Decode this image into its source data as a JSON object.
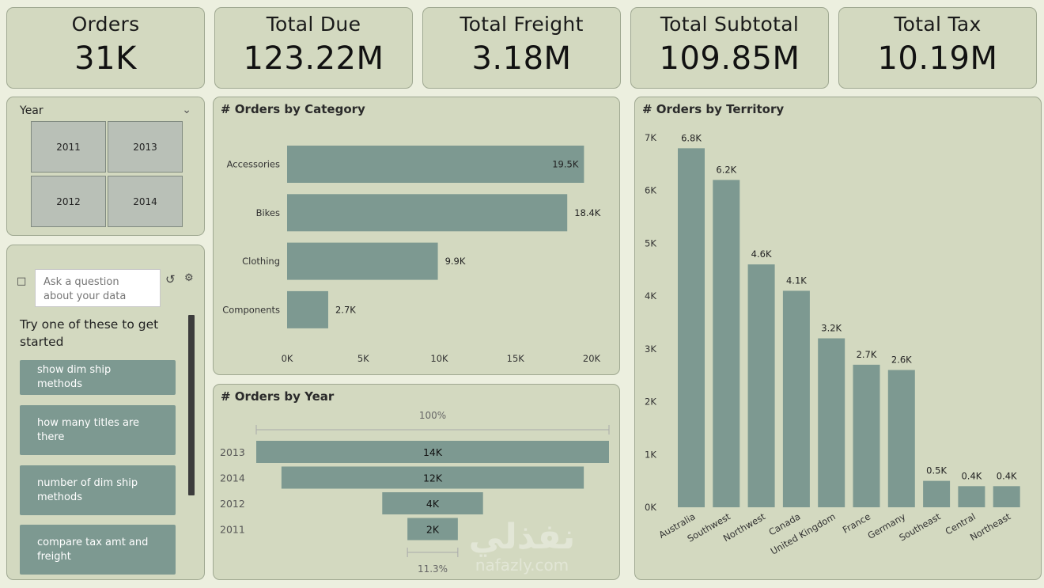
{
  "kpis": [
    {
      "label": "Orders",
      "value": "31K"
    },
    {
      "label": "Total Due",
      "value": "123.22M"
    },
    {
      "label": "Total Freight",
      "value": "3.18M"
    },
    {
      "label": "Total Subtotal",
      "value": "109.85M"
    },
    {
      "label": "Total Tax",
      "value": "10.19M"
    }
  ],
  "year_slicer": {
    "title": "Year",
    "options": [
      "2011",
      "2013",
      "2012",
      "2014"
    ]
  },
  "qa": {
    "placeholder": "Ask a question about your data",
    "prompt": "Try one of these to get started",
    "suggestions": [
      "show dim ship methods",
      "how many titles are there",
      "number of dim ship methods",
      "compare tax amt and freight"
    ]
  },
  "watermark": {
    "text": "نفذلي",
    "subtext": "nafazly.com"
  },
  "colors": {
    "bar": "#7d9991",
    "panel": "#d3d9c0",
    "background": "#ecefdf"
  },
  "chart_data": [
    {
      "type": "bar",
      "orientation": "horizontal",
      "title": "# Orders by Category",
      "categories": [
        "Accessories",
        "Bikes",
        "Clothing",
        "Components"
      ],
      "values": [
        19500,
        18400,
        9900,
        2700
      ],
      "data_labels": [
        "19.5K",
        "18.4K",
        "9.9K",
        "2.7K"
      ],
      "xlim": [
        0,
        20000
      ],
      "xticks": [
        "0K",
        "5K",
        "10K",
        "15K",
        "20K"
      ]
    },
    {
      "type": "bar",
      "orientation": "funnel",
      "title": "# Orders by Year",
      "categories": [
        "2013",
        "2014",
        "2012",
        "2011"
      ],
      "values": [
        14000,
        12000,
        4000,
        2000
      ],
      "data_labels": [
        "14K",
        "12K",
        "4K",
        "2K"
      ],
      "top_percent": "100%",
      "bottom_percent": "11.3%"
    },
    {
      "type": "bar",
      "title": "# Orders by Territory",
      "categories": [
        "Australia",
        "Southwest",
        "Northwest",
        "Canada",
        "United Kingdom",
        "France",
        "Germany",
        "Southeast",
        "Central",
        "Northeast"
      ],
      "values": [
        6800,
        6200,
        4600,
        4100,
        3200,
        2700,
        2600,
        500,
        400,
        400
      ],
      "data_labels": [
        "6.8K",
        "6.2K",
        "4.6K",
        "4.1K",
        "3.2K",
        "2.7K",
        "2.6K",
        "0.5K",
        "0.4K",
        "0.4K"
      ],
      "ylim": [
        0,
        7000
      ],
      "yticks": [
        "0K",
        "1K",
        "2K",
        "3K",
        "4K",
        "5K",
        "6K",
        "7K"
      ]
    }
  ]
}
